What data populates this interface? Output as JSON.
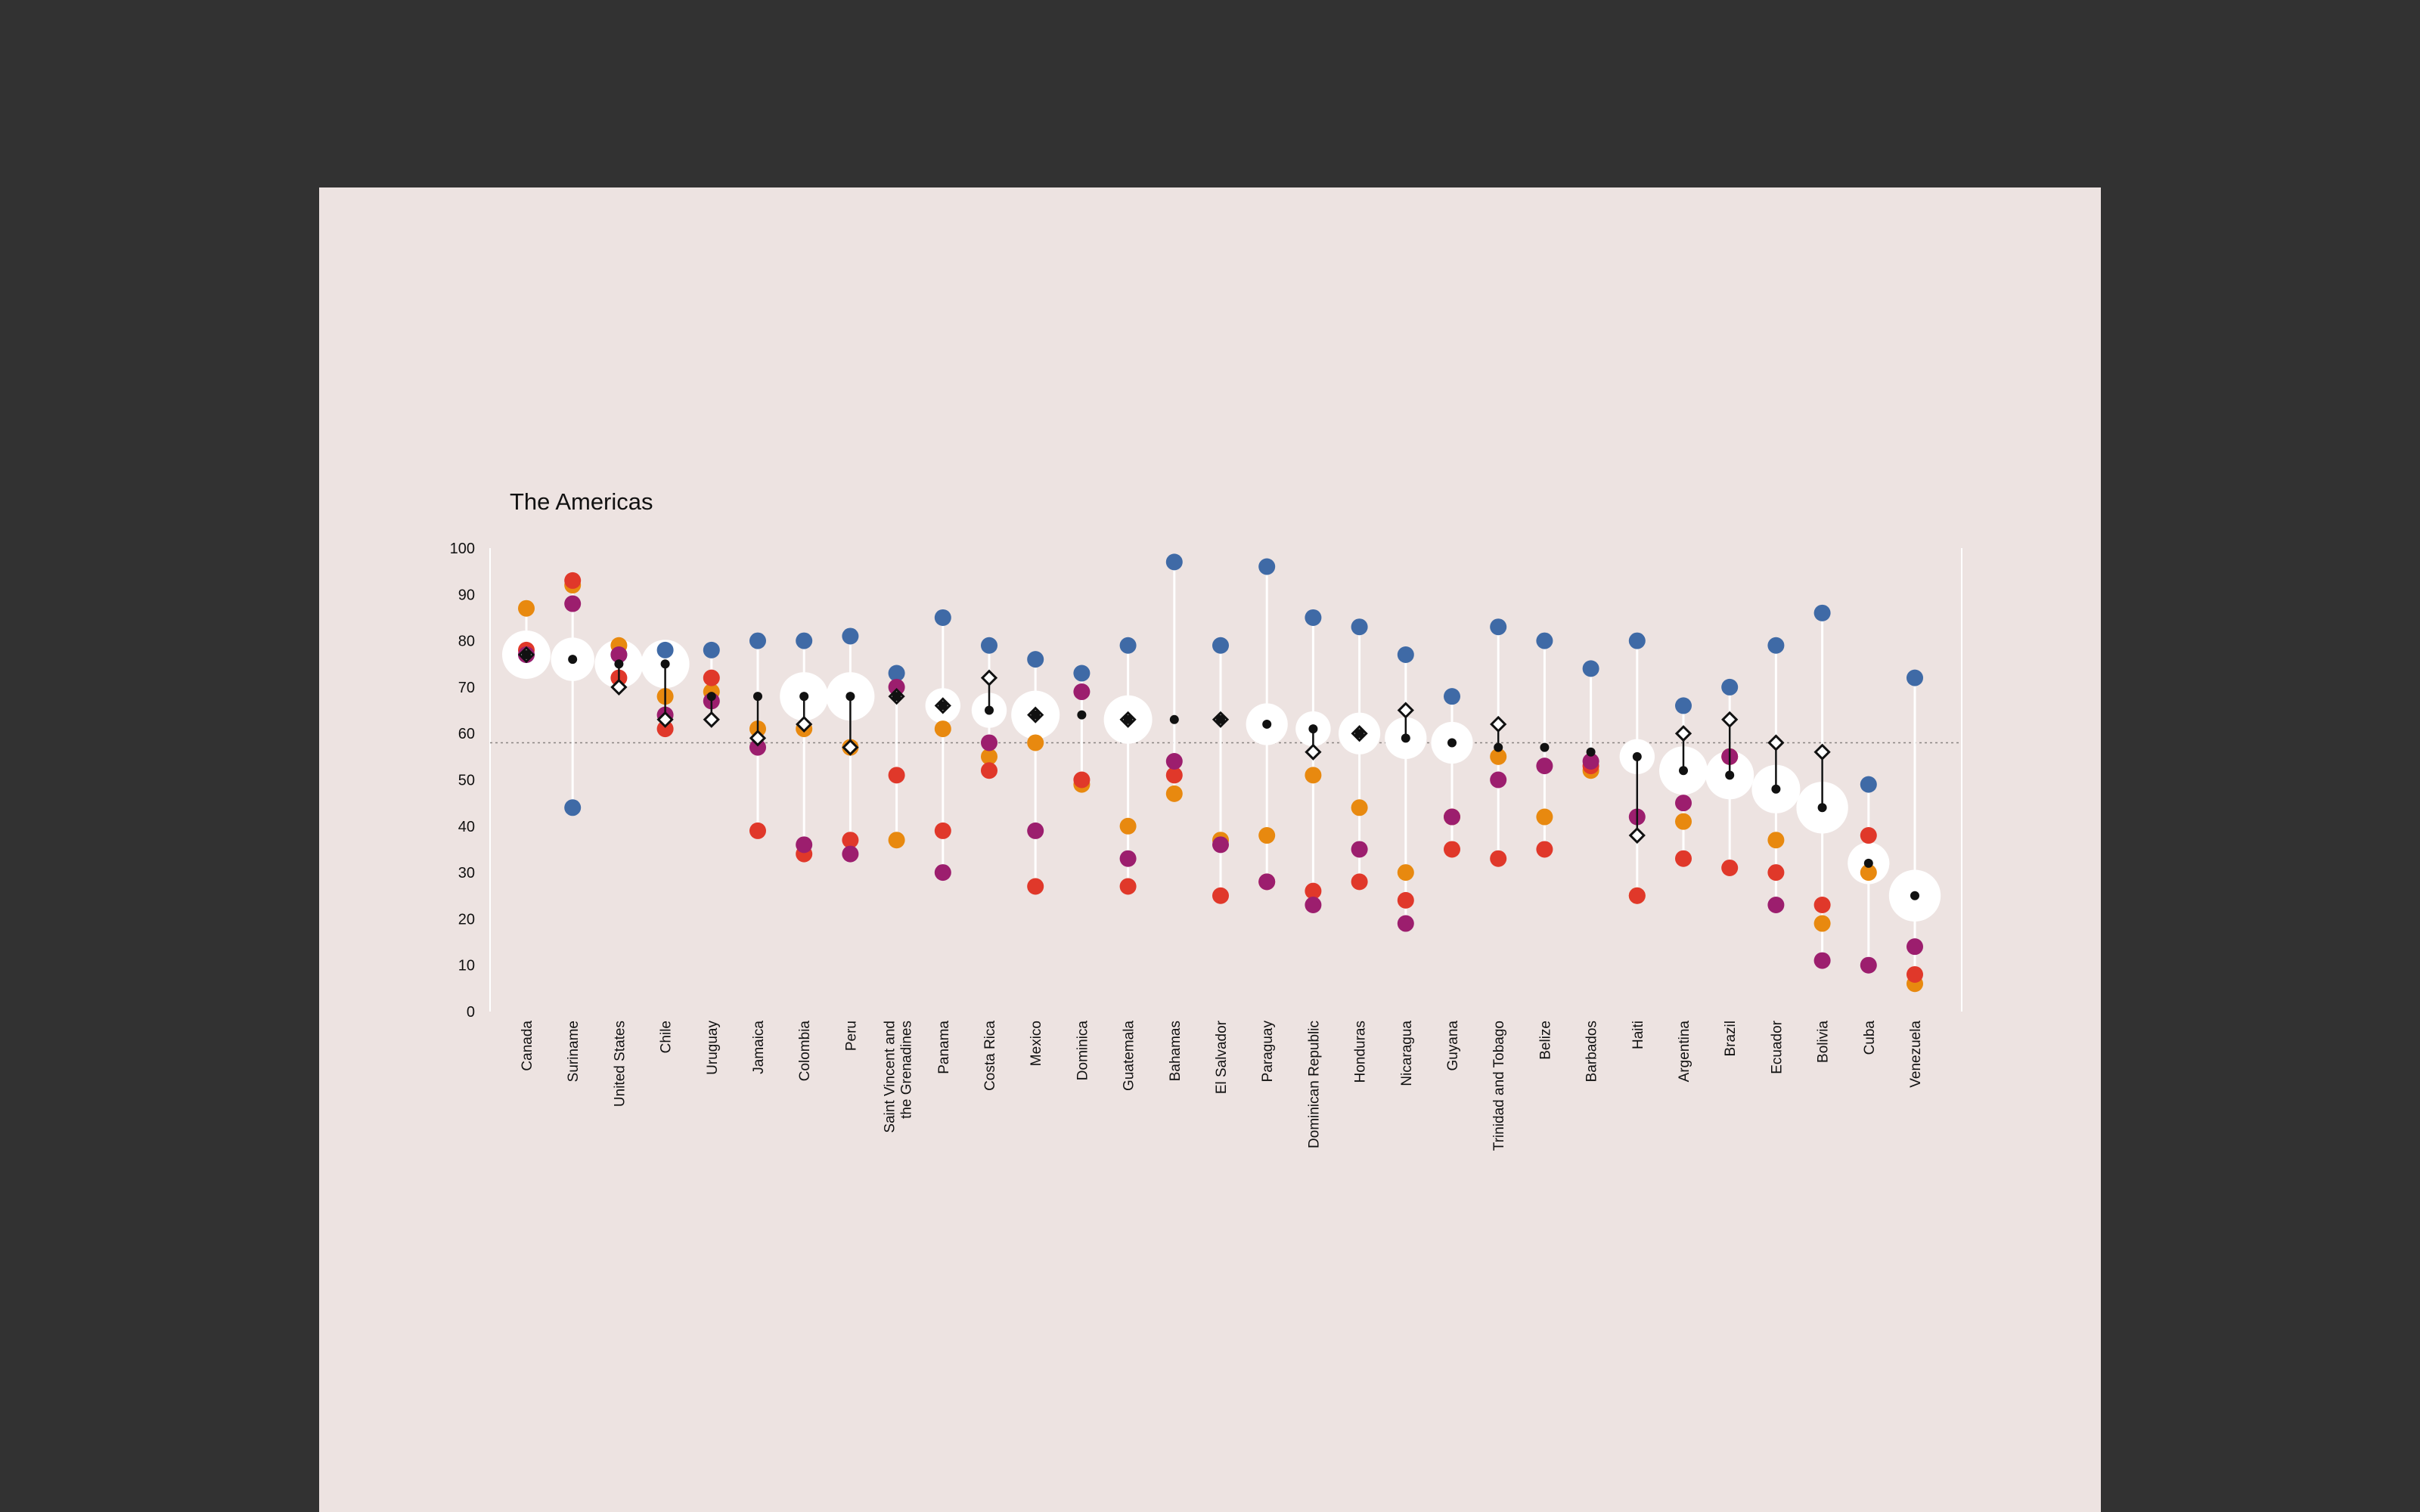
{
  "chart_data": {
    "type": "scatter",
    "title": "The Americas",
    "ylim": [
      0,
      100
    ],
    "yticks": [
      0,
      10,
      20,
      30,
      40,
      50,
      60,
      70,
      80,
      90,
      100
    ],
    "reference_line": 58,
    "categories": [
      "Canada",
      "Suriname",
      "United States",
      "Chile",
      "Uruguay",
      "Jamaica",
      "Colombia",
      "Peru",
      "Saint Vincent and the Grenadines",
      "Panama",
      "Costa Rica",
      "Mexico",
      "Dominica",
      "Guatemala",
      "Bahamas",
      "El Salvador",
      "Paraguay",
      "Dominican Republic",
      "Honduras",
      "Nicaragua",
      "Guyana",
      "Trinidad and Tobago",
      "Belize",
      "Barbados",
      "Haiti",
      "Argentina",
      "Brazil",
      "Ecuador",
      "Bolivia",
      "Cuba",
      "Venezuela"
    ],
    "category_lines": [
      [
        "Canada"
      ],
      [
        "Suriname"
      ],
      [
        "United States"
      ],
      [
        "Chile"
      ],
      [
        "Uruguay"
      ],
      [
        "Jamaica"
      ],
      [
        "Colombia"
      ],
      [
        "Peru"
      ],
      [
        "Saint Vincent and",
        "the Grenadines"
      ],
      [
        "Panama"
      ],
      [
        "Costa Rica"
      ],
      [
        "Mexico"
      ],
      [
        "Dominica"
      ],
      [
        "Guatemala"
      ],
      [
        "Bahamas"
      ],
      [
        "El Salvador"
      ],
      [
        "Paraguay"
      ],
      [
        "Dominican Republic"
      ],
      [
        "Honduras"
      ],
      [
        "Nicaragua"
      ],
      [
        "Guyana"
      ],
      [
        "Trinidad and Tobago"
      ],
      [
        "Belize"
      ],
      [
        "Barbados"
      ],
      [
        "Haiti"
      ],
      [
        "Argentina"
      ],
      [
        "Brazil"
      ],
      [
        "Ecuador"
      ],
      [
        "Bolivia"
      ],
      [
        "Cuba"
      ],
      [
        "Venezuela"
      ]
    ],
    "colors": {
      "blue": "#3f6aa6",
      "orange": "#e8890f",
      "red": "#e0382a",
      "purple": "#9c1e6e",
      "darkred": "#a3231f",
      "panel": "#ede3e1",
      "page": "#323232",
      "ink": "#111111"
    },
    "series": [
      {
        "color": "blue",
        "values": [
          77,
          44,
          77,
          78,
          78,
          80,
          80,
          81,
          73,
          85,
          79,
          76,
          73,
          79,
          97,
          79,
          96,
          85,
          83,
          77,
          68,
          83,
          80,
          74,
          80,
          66,
          70,
          79,
          86,
          49,
          72
        ]
      },
      {
        "color": "orange",
        "values": [
          87,
          92,
          79,
          68,
          69,
          61,
          61,
          57,
          37,
          61,
          55,
          58,
          49,
          40,
          47,
          37,
          38,
          51,
          44,
          30,
          42,
          55,
          42,
          52,
          25,
          41,
          55,
          37,
          19,
          30,
          6
        ]
      },
      {
        "color": "red",
        "values": [
          78,
          93,
          72,
          61,
          72,
          39,
          34,
          37,
          51,
          39,
          52,
          27,
          50,
          27,
          51,
          25,
          28,
          26,
          28,
          24,
          35,
          33,
          35,
          53,
          25,
          33,
          31,
          30,
          23,
          38,
          8
        ]
      },
      {
        "color": "purple",
        "values": [
          77,
          88,
          77,
          64,
          67,
          57,
          36,
          34,
          70,
          30,
          58,
          39,
          69,
          33,
          54,
          36,
          28,
          23,
          35,
          19,
          42,
          50,
          53,
          54,
          42,
          45,
          55,
          23,
          11,
          10,
          14
        ]
      }
    ],
    "bubble": {
      "values": [
        77,
        76,
        75,
        75,
        68,
        68,
        68,
        68,
        68,
        66,
        65,
        64,
        64,
        63,
        63,
        63,
        62,
        61,
        60,
        59,
        58,
        57,
        57,
        56,
        55,
        52,
        51,
        48,
        44,
        32,
        25
      ],
      "sizes": [
        1.0,
        0.85,
        1.0,
        1.0,
        0.0,
        0.0,
        1.0,
        1.0,
        0.0,
        0.6,
        0.6,
        1.0,
        0.0,
        1.0,
        0.0,
        0.0,
        0.8,
        0.6,
        0.8,
        0.8,
        0.8,
        0.0,
        0.0,
        0.0,
        0.6,
        1.0,
        1.0,
        1.0,
        1.1,
        0.8,
        1.1
      ]
    },
    "diamond": [
      77,
      null,
      70,
      63,
      63,
      59,
      62,
      57,
      68,
      66,
      72,
      64,
      null,
      63,
      null,
      63,
      null,
      56,
      60,
      65,
      null,
      62,
      null,
      null,
      38,
      60,
      63,
      58,
      56,
      null,
      null
    ]
  }
}
